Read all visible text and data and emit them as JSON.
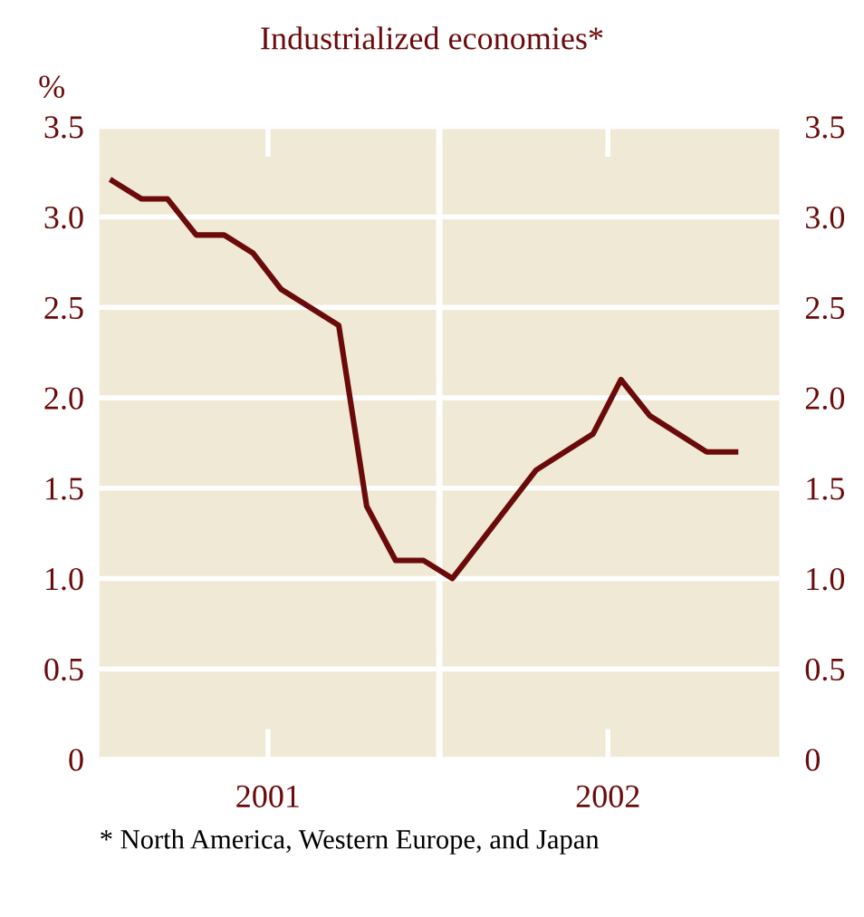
{
  "chart_data": {
    "type": "line",
    "title": "Industrialized economies*",
    "ylabel": "%",
    "x": [
      "2001-01-15",
      "2001-02-15",
      "2001-03-15",
      "2001-04-15",
      "2001-05-15",
      "2001-06-15",
      "2001-07-15",
      "2001-09-15",
      "2001-10-15",
      "2001-11-15",
      "2001-12-15",
      "2002-01-15",
      "2002-04-15",
      "2002-06-15",
      "2002-07-15",
      "2002-08-15",
      "2002-10-15",
      "2002-11-15"
    ],
    "series": [
      {
        "color": "#6b0a0a",
        "values": [
          3.2,
          3.1,
          3.1,
          2.9,
          2.9,
          2.8,
          2.6,
          2.4,
          1.4,
          1.1,
          1.1,
          1.0,
          1.6,
          1.8,
          2.1,
          1.9,
          1.7,
          1.7
        ]
      }
    ],
    "xlim": [
      "2001-01-01",
      "2003-01-01"
    ],
    "xticks": [
      {
        "value": "2001-07-01",
        "label": "2001"
      },
      {
        "value": "2002-07-01",
        "label": "2002"
      }
    ],
    "ylim": [
      0,
      3.5
    ],
    "yticks": [
      {
        "value": 0,
        "label": "0"
      },
      {
        "value": 0.5,
        "label": "0.5"
      },
      {
        "value": 1,
        "label": "1.0"
      },
      {
        "value": 1.5,
        "label": "1.5"
      },
      {
        "value": 2,
        "label": "2.0"
      },
      {
        "value": 2.5,
        "label": "2.5"
      },
      {
        "value": 3,
        "label": "3.0"
      },
      {
        "value": 3.5,
        "label": "3.5"
      }
    ],
    "y2lim": [
      0,
      3.5
    ],
    "y2ticks": [
      {
        "value": 0,
        "label": "0"
      },
      {
        "value": 0.5,
        "label": "0.5"
      },
      {
        "value": 1,
        "label": "1.0"
      },
      {
        "value": 1.5,
        "label": "1.5"
      },
      {
        "value": 2,
        "label": "2.0"
      },
      {
        "value": 2.5,
        "label": "2.5"
      },
      {
        "value": 3,
        "label": "3.0"
      },
      {
        "value": 3.5,
        "label": "3.5"
      }
    ],
    "ref_lines": [
      {
        "axis": "x",
        "value": "2002-01-01",
        "color": "#ffffff"
      }
    ],
    "grid": "y",
    "marker": "none",
    "line_style": "solid",
    "legend": false,
    "annotations": [
      "* North America, Western Europe, and Japan"
    ]
  }
}
